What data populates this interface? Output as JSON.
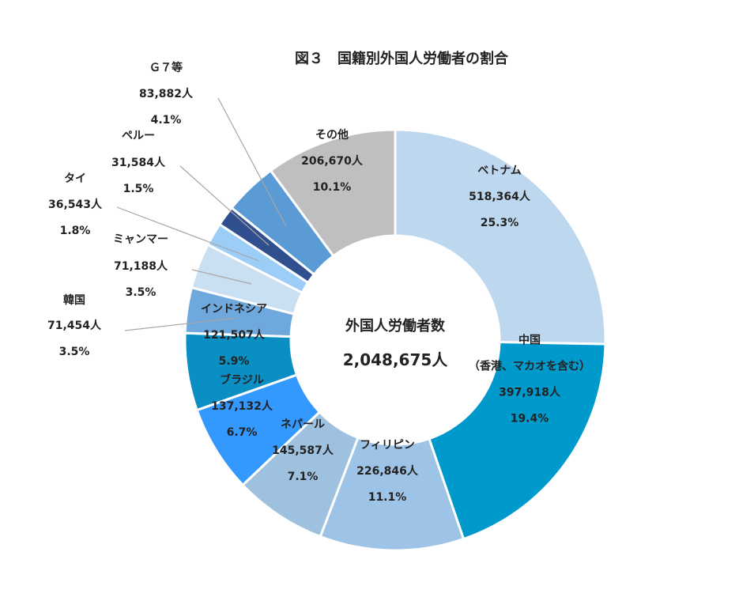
{
  "chart_data": {
    "type": "pie",
    "variant": "donut",
    "title": "図３　国籍別外国人労働者の割合",
    "center": {
      "label": "外国人労働者数",
      "total": "2,048,675人"
    },
    "start_angle": "12 o'clock",
    "direction": "clockwise",
    "slices": [
      {
        "name": "ベトナム",
        "value": 518364,
        "value_label": "518,364人",
        "percent": "25.3%",
        "color": "#bdd7ee",
        "label_position": "inside"
      },
      {
        "name": "中国",
        "name_sub": "（香港、マカオを含む）",
        "value": 397918,
        "value_label": "397,918人",
        "percent": "19.4%",
        "color": "#0099cc",
        "label_position": "inside"
      },
      {
        "name": "フィリピン",
        "value": 226846,
        "value_label": "226,846人",
        "percent": "11.1%",
        "color": "#9dc3e6",
        "label_position": "inside"
      },
      {
        "name": "ネパール",
        "value": 145587,
        "value_label": "145,587人",
        "percent": "7.1%",
        "color": "#9fc1e0",
        "label_position": "inside"
      },
      {
        "name": "ブラジル",
        "value": 137132,
        "value_label": "137,132人",
        "percent": "6.7%",
        "color": "#3399ff",
        "label_position": "inside"
      },
      {
        "name": "インドネシア",
        "value": 121507,
        "value_label": "121,507人",
        "percent": "5.9%",
        "color": "#0a8fc4",
        "label_position": "inside"
      },
      {
        "name": "韓国",
        "value": 71454,
        "value_label": "71,454人",
        "percent": "3.5%",
        "color": "#6fa8dc",
        "label_position": "outside"
      },
      {
        "name": "ミャンマー",
        "value": 71188,
        "value_label": "71,188人",
        "percent": "3.5%",
        "color": "#c9dff2",
        "label_position": "outside"
      },
      {
        "name": "タイ",
        "value": 36543,
        "value_label": "36,543人",
        "percent": "1.8%",
        "color": "#9ccdf7",
        "label_position": "outside"
      },
      {
        "name": "ペルー",
        "value": 31584,
        "value_label": "31,584人",
        "percent": "1.5%",
        "color": "#2f4f8f",
        "label_position": "outside"
      },
      {
        "name": "Ｇ７等",
        "value": 83882,
        "value_label": "83,882人",
        "percent": "4.1%",
        "color": "#5b9bd5",
        "label_position": "outside"
      },
      {
        "name": "その他",
        "value": 206670,
        "value_label": "206,670人",
        "percent": "10.1%",
        "color": "#bfbfbf",
        "label_position": "inside"
      }
    ]
  }
}
